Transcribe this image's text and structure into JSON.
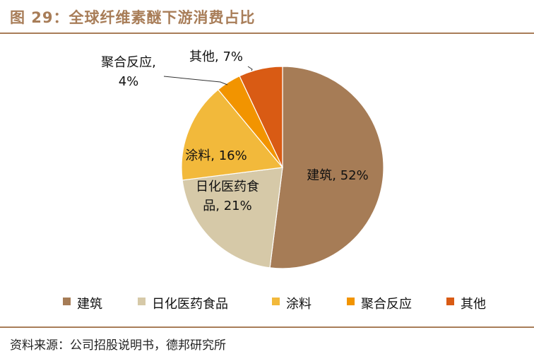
{
  "figure": {
    "title": "图 29：全球纤维素醚下游消费占比",
    "source": "资料来源：公司招股说明书，德邦研究所"
  },
  "colors": {
    "accent": "#a87d58",
    "slices": [
      "#a67c56",
      "#d6c9a8",
      "#f2b93b",
      "#f29400",
      "#d95b14"
    ]
  },
  "chart_data": {
    "type": "pie",
    "title": "",
    "start": "12 o'clock, clockwise",
    "legend_position": "bottom",
    "slices": [
      {
        "label": "建筑",
        "value": 52,
        "display": "建筑, 52%"
      },
      {
        "label": "日化医药食品",
        "value": 21,
        "display": "日化医药食品, 21%"
      },
      {
        "label": "涂料",
        "value": 16,
        "display": "涂料, 16%"
      },
      {
        "label": "聚合反应",
        "value": 4,
        "display": "聚合反应, 4%"
      },
      {
        "label": "其他",
        "value": 7,
        "display": "其他, 7%"
      }
    ],
    "data_labels": [
      [
        "建筑, 52%"
      ],
      [
        "日化医药食",
        "品, 21%"
      ],
      [
        "涂料, 16%"
      ],
      [
        "聚合反应,",
        "4%"
      ],
      [
        "其他, 7%"
      ]
    ]
  }
}
